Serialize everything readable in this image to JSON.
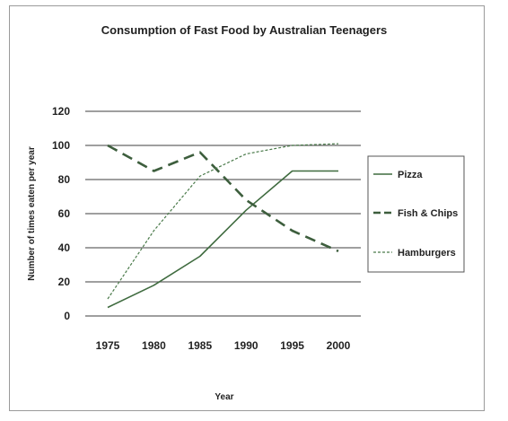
{
  "chart_data": {
    "type": "line",
    "title": "Consumption of Fast Food by Australian Teenagers",
    "xlabel": "Year",
    "ylabel": "Number of times eaten per year",
    "x": [
      1975,
      1980,
      1985,
      1990,
      1995,
      2000
    ],
    "x_tick_labels": [
      "1975",
      "1980",
      "1985",
      "1990",
      "1995",
      "2000"
    ],
    "ylim": [
      0,
      120
    ],
    "y_ticks": [
      0,
      20,
      40,
      60,
      80,
      100,
      120
    ],
    "y_tick_labels": [
      "0",
      "20",
      "40",
      "60",
      "80",
      "100",
      "120"
    ],
    "grid": "horizontal",
    "legend_position": "right",
    "series": [
      {
        "name": "Pizza",
        "style": "solid",
        "color": "#3f6b3f",
        "values": [
          5,
          18,
          35,
          62,
          85,
          85
        ]
      },
      {
        "name": "Fish & Chips",
        "style": "long-dash",
        "color": "#3d5e3d",
        "values": [
          100,
          85,
          96,
          68,
          50,
          38
        ]
      },
      {
        "name": "Hamburgers",
        "style": "dotted",
        "color": "#4a7a4a",
        "values": [
          10,
          50,
          82,
          95,
          100,
          101
        ]
      }
    ]
  }
}
